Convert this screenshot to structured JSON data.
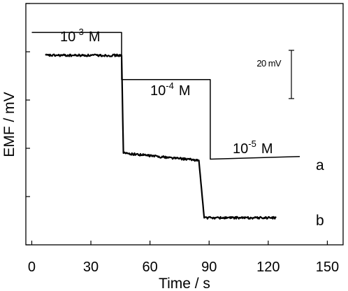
{
  "chart_data": {
    "type": "line",
    "title": "",
    "xlabel": "Time / s",
    "ylabel": "EMF / mV",
    "xlim": [
      -3,
      158
    ],
    "ylim": [
      0,
      100
    ],
    "xticks": [
      0,
      30,
      60,
      90,
      120,
      150
    ],
    "xtick_labels": [
      "0",
      "30",
      "60",
      "90",
      "120",
      "150"
    ],
    "yticks": [
      0,
      20,
      40,
      60,
      80,
      100
    ],
    "yticks_labeled": false,
    "scale_bar": {
      "label": "20 mV",
      "length": 20
    },
    "grid": false,
    "series": [
      {
        "name": "a",
        "style": "thin",
        "x": [
          0,
          45.6,
          45.6,
          90.6,
          90.6,
          136
        ],
        "y": [
          88.0,
          88.0,
          68.5,
          68.5,
          35.5,
          36.6
        ]
      },
      {
        "name": "b",
        "style": "thick-noisy",
        "x": [
          7,
          45.6,
          46.5,
          84.8,
          87.5,
          124
        ],
        "y": [
          78.5,
          78.5,
          38.0,
          35.0,
          11.2,
          11.2
        ]
      }
    ],
    "annotations": [
      {
        "text": "10-3 M",
        "base": "10",
        "exp": "-3",
        "unit": "M"
      },
      {
        "text": "10-4 M",
        "base": "10",
        "exp": "-4",
        "unit": "M"
      },
      {
        "text": "10-5 M",
        "base": "10",
        "exp": "-5",
        "unit": "M"
      }
    ]
  }
}
